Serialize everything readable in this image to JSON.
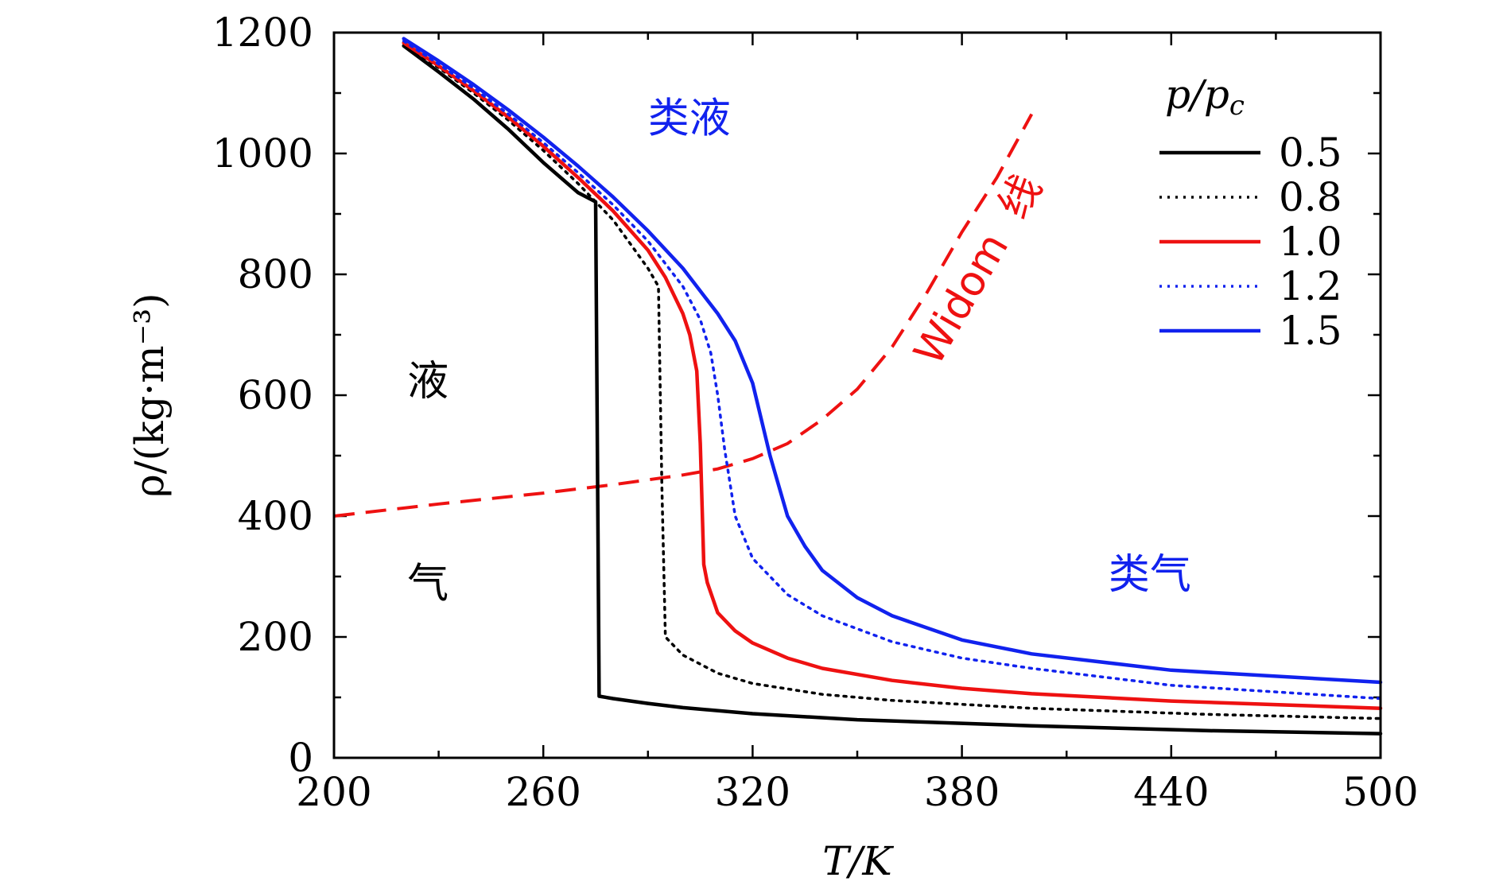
{
  "chart_data": {
    "type": "line",
    "xlabel": "T/K",
    "ylabel": "ρ/(kg·m⁻³)",
    "xlim": [
      200,
      500
    ],
    "ylim": [
      0,
      1200
    ],
    "x_ticks": [
      "200",
      "260",
      "320",
      "380",
      "440",
      "500"
    ],
    "y_ticks": [
      "0",
      "200",
      "400",
      "600",
      "800",
      "1000",
      "1200"
    ],
    "legend": {
      "title": "p/pc",
      "placement": "top-right",
      "entries": [
        "0.5",
        "0.8",
        "1.0",
        "1.2",
        "1.5"
      ]
    },
    "series": [
      {
        "name": "0.5",
        "style": "solid",
        "color": "#000000",
        "x": [
          220,
          230,
          240,
          250,
          260,
          270,
          275,
          276,
          280,
          290,
          300,
          320,
          350,
          400,
          450,
          500
        ],
        "y": [
          1178,
          1135,
          1090,
          1040,
          985,
          935,
          920,
          102,
          98,
          90,
          83,
          73,
          63,
          53,
          45,
          40
        ]
      },
      {
        "name": "0.8",
        "style": "dotted",
        "color": "#000000",
        "x": [
          220,
          230,
          240,
          250,
          260,
          270,
          280,
          285,
          290,
          293,
          294,
          295,
          300,
          310,
          320,
          340,
          360,
          400,
          450,
          500
        ],
        "y": [
          1182,
          1142,
          1100,
          1055,
          1005,
          950,
          890,
          850,
          810,
          780,
          450,
          200,
          170,
          140,
          123,
          105,
          95,
          82,
          72,
          65
        ]
      },
      {
        "name": "1.0",
        "style": "solid",
        "color": "#ee1111",
        "x": [
          220,
          230,
          240,
          250,
          260,
          270,
          280,
          290,
          295,
          300,
          302,
          304,
          305,
          306,
          307,
          310,
          315,
          320,
          330,
          340,
          360,
          380,
          400,
          440,
          500
        ],
        "y": [
          1183,
          1145,
          1104,
          1060,
          1012,
          960,
          905,
          840,
          795,
          735,
          700,
          640,
          520,
          320,
          290,
          240,
          210,
          190,
          165,
          148,
          128,
          115,
          106,
          94,
          82
        ]
      },
      {
        "name": "1.2",
        "style": "dotted",
        "color": "#1122ee",
        "x": [
          220,
          230,
          240,
          250,
          260,
          270,
          280,
          290,
          300,
          305,
          308,
          310,
          312,
          315,
          320,
          330,
          340,
          360,
          380,
          400,
          440,
          500
        ],
        "y": [
          1186,
          1148,
          1108,
          1065,
          1018,
          968,
          915,
          855,
          780,
          725,
          670,
          600,
          510,
          400,
          330,
          270,
          235,
          192,
          165,
          148,
          120,
          98
        ]
      },
      {
        "name": "1.5",
        "style": "solid",
        "color": "#1122ee",
        "x": [
          220,
          230,
          240,
          250,
          260,
          270,
          280,
          290,
          300,
          310,
          315,
          320,
          325,
          330,
          335,
          340,
          350,
          360,
          380,
          400,
          440,
          500
        ],
        "y": [
          1190,
          1153,
          1114,
          1072,
          1027,
          979,
          928,
          872,
          810,
          735,
          690,
          620,
          500,
          400,
          350,
          310,
          265,
          235,
          195,
          172,
          145,
          125
        ]
      }
    ],
    "widom_line": {
      "label": "Widom",
      "label_cn": "线",
      "color": "#ee1111",
      "style": "dashed",
      "x": [
        200,
        230,
        260,
        280,
        300,
        310,
        320,
        330,
        340,
        350,
        360,
        370,
        380,
        390,
        400
      ],
      "y": [
        400,
        420,
        438,
        452,
        468,
        478,
        495,
        520,
        560,
        610,
        680,
        770,
        870,
        960,
        1065
      ]
    },
    "annotations": [
      {
        "text": "类液",
        "color": "#1122ee",
        "x": 290,
        "y": 1035
      },
      {
        "text": "液",
        "color": "#000000",
        "x": 221,
        "y": 600
      },
      {
        "text": "气",
        "color": "#000000",
        "x": 221,
        "y": 265
      },
      {
        "text": "类气",
        "color": "#1122ee",
        "x": 422,
        "y": 280
      }
    ]
  }
}
